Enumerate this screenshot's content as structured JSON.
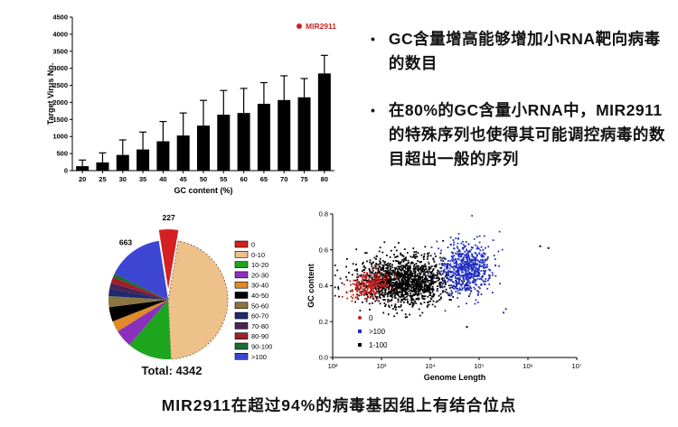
{
  "page": {
    "background": "#ffffff"
  },
  "bullets": {
    "marker": "•",
    "items": [
      {
        "text": "GC含量增高能够增加小RNA靶向病毒的数目"
      },
      {
        "text": "在80%的GC含量小RNA中，MIR2911的特殊序列也使得其可能调控病毒的数目超出一般的序列"
      }
    ]
  },
  "caption": "MIR2911在超过94%的病毒基因组上有结合位点",
  "chart_data": [
    {
      "type": "bar",
      "title": "",
      "xlabel": "GC content (%)",
      "ylabel": "Target Virus No.",
      "categories": [
        "20",
        "25",
        "30",
        "35",
        "40",
        "45",
        "50",
        "55",
        "60",
        "65",
        "70",
        "75",
        "80"
      ],
      "values": [
        130,
        240,
        460,
        620,
        860,
        1030,
        1320,
        1640,
        1690,
        1960,
        2070,
        2150,
        2850
      ],
      "errors_up": [
        180,
        280,
        440,
        510,
        580,
        660,
        740,
        710,
        720,
        620,
        710,
        550,
        530
      ],
      "ylim": [
        0,
        4500
      ],
      "ytick_step": 500,
      "bar_color": "#000000",
      "legend": {
        "label": "MIR2911",
        "color": "#c92424",
        "position": "top-right"
      }
    },
    {
      "type": "pie",
      "total": 4342,
      "total_label": "Total: 4342",
      "labels": [
        "0",
        "0-10",
        "10-20",
        "20-30",
        "30-40",
        "40-50",
        "50-60",
        "60-70",
        "70-80",
        "80-90",
        "90-100",
        ">100"
      ],
      "values": [
        227,
        2020,
        520,
        210,
        130,
        170,
        130,
        87,
        70,
        70,
        45,
        663
      ],
      "colors": [
        "#d42020",
        "#eec08a",
        "#1ea51e",
        "#8c2fbe",
        "#e08a28",
        "#000000",
        "#8a7440",
        "#1d2a70",
        "#4a2355",
        "#9e1f2a",
        "#1d6b35",
        "#3c46d2"
      ],
      "explode_index": 0,
      "callouts": [
        {
          "slice": 0,
          "text": "227"
        },
        {
          "slice": 11,
          "text": "663"
        }
      ],
      "legend_position": "right"
    },
    {
      "type": "scatter",
      "xlabel": "Genome Length",
      "ylabel": "GC content",
      "x_scale": "log",
      "x_range_log10": [
        2,
        7
      ],
      "x_ticks": [
        "10²",
        "10³",
        "10⁴",
        "10⁵",
        "10⁶",
        "10⁷"
      ],
      "ylim": [
        0,
        0.8
      ],
      "y_ticks": [
        "0.0",
        "0.2",
        "0.4",
        "0.6",
        "0.8"
      ],
      "legend": [
        {
          "label": "0",
          "color": "#c21f1f",
          "marker": "circle"
        },
        {
          "label": ">100",
          "color": "#2330c4",
          "marker": "square"
        },
        {
          "label": "1-100",
          "color": "#000000",
          "marker": "square"
        }
      ],
      "clusters": [
        {
          "name": "1-100",
          "color": "#000000",
          "count": 1500,
          "x_log10_mean": 3.45,
          "x_log10_sd": 0.45,
          "y_mean": 0.43,
          "y_sd": 0.065,
          "y_slope": 0.0
        },
        {
          "name": "0",
          "color": "#c21f1f",
          "count": 230,
          "x_log10_mean": 2.75,
          "x_log10_sd": 0.22,
          "y_mean": 0.4,
          "y_sd": 0.035,
          "y_slope": 0.06
        },
        {
          "name": ">100",
          "color": "#2330c4",
          "count": 650,
          "x_log10_mean": 4.75,
          "x_log10_sd": 0.26,
          "y_mean": 0.5,
          "y_sd": 0.075,
          "y_slope": 0.0
        }
      ],
      "extra_points": [
        {
          "x_log10": 6.25,
          "y": 0.62,
          "color": "#000000"
        },
        {
          "x_log10": 6.42,
          "y": 0.61,
          "color": "#000000"
        },
        {
          "x_log10": 5.55,
          "y": 0.27,
          "color": "#2330c4"
        },
        {
          "x_log10": 5.5,
          "y": 0.25,
          "color": "#2330c4"
        },
        {
          "x_log10": 4.75,
          "y": 0.17,
          "color": "#000000"
        }
      ]
    }
  ]
}
